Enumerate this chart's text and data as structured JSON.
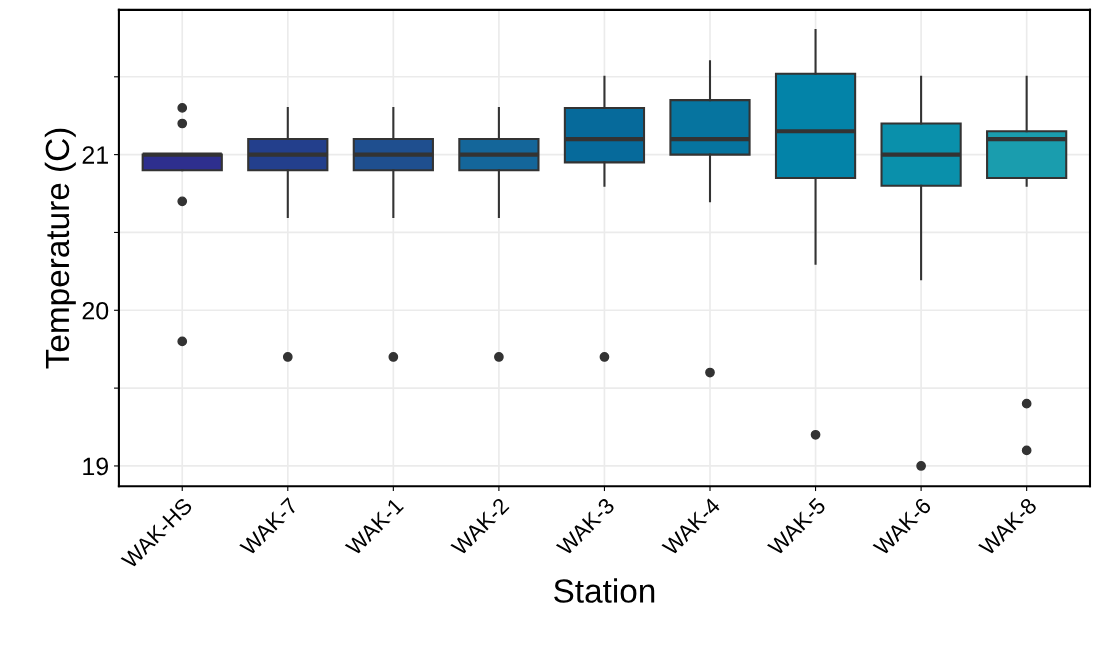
{
  "chart_data": {
    "type": "box",
    "xlabel": "Station",
    "ylabel": "Temperature (C)",
    "categories": [
      "WAK-HS",
      "WAK-7",
      "WAK-1",
      "WAK-2",
      "WAK-3",
      "WAK-4",
      "WAK-5",
      "WAK-6",
      "WAK-8"
    ],
    "colors": [
      "#2e2f8e",
      "#233f8c",
      "#1f4f8f",
      "#14669a",
      "#066a9b",
      "#06749f",
      "#0383a8",
      "#0a90ab",
      "#1a9dae"
    ],
    "boxes": [
      {
        "low": 20.9,
        "q1": 20.9,
        "median": 21.0,
        "q3": 21.0,
        "high": 21.0,
        "outliers": [
          21.3,
          21.2,
          20.7,
          19.8
        ]
      },
      {
        "low": 20.6,
        "q1": 20.9,
        "median": 21.0,
        "q3": 21.1,
        "high": 21.3,
        "outliers": [
          19.7
        ]
      },
      {
        "low": 20.6,
        "q1": 20.9,
        "median": 21.0,
        "q3": 21.1,
        "high": 21.3,
        "outliers": [
          19.7
        ]
      },
      {
        "low": 20.6,
        "q1": 20.9,
        "median": 21.0,
        "q3": 21.1,
        "high": 21.3,
        "outliers": [
          19.7
        ]
      },
      {
        "low": 20.8,
        "q1": 20.95,
        "median": 21.1,
        "q3": 21.3,
        "high": 21.5,
        "outliers": [
          19.7
        ]
      },
      {
        "low": 20.7,
        "q1": 21.0,
        "median": 21.1,
        "q3": 21.35,
        "high": 21.6,
        "outliers": [
          19.6
        ]
      },
      {
        "low": 20.3,
        "q1": 20.85,
        "median": 21.15,
        "q3": 21.52,
        "high": 21.8,
        "outliers": [
          19.2
        ]
      },
      {
        "low": 20.2,
        "q1": 20.8,
        "median": 21.0,
        "q3": 21.2,
        "high": 21.5,
        "outliers": [
          19.0
        ]
      },
      {
        "low": 20.8,
        "q1": 20.85,
        "median": 21.1,
        "q3": 21.15,
        "high": 21.5,
        "outliers": [
          19.4,
          19.1
        ]
      }
    ],
    "ylim": [
      18.87,
      21.93
    ],
    "yticks": [
      19,
      {
        "value": 19.5,
        "label": null
      },
      20,
      {
        "value": 20.5,
        "label": null
      },
      21,
      {
        "value": 21.5,
        "label": null
      }
    ],
    "grid": true,
    "legend": false
  }
}
